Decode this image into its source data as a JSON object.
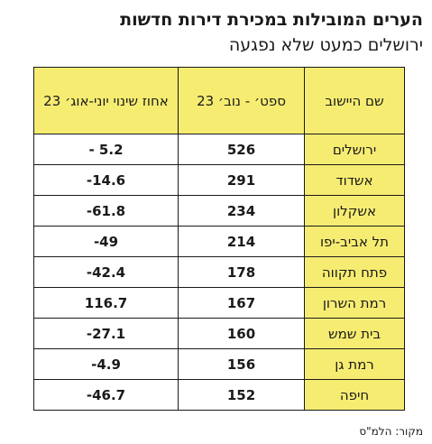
{
  "chart_data": {
    "type": "table",
    "title": "הערים המובילות במכירת דירות חדשות",
    "subtitle": "ירושלים כמעט שלא נפגעה",
    "columns": [
      "שם היישוב",
      "ספט׳ - נוב׳ 23",
      "אחוז שינוי יוני-אוג׳ 23"
    ],
    "rows": [
      {
        "city": "ירושלים",
        "sales": 526,
        "change": "- 5.2"
      },
      {
        "city": "אשדוד",
        "sales": 291,
        "change": "-14.6"
      },
      {
        "city": "אשקלון",
        "sales": 234,
        "change": "-61.8"
      },
      {
        "city": "תל אביב-יפו",
        "sales": 214,
        "change": "-49"
      },
      {
        "city": "פתח תקווה",
        "sales": 178,
        "change": "-42.4"
      },
      {
        "city": "רמת השרון",
        "sales": 167,
        "change": "116.7"
      },
      {
        "city": "בית שמש",
        "sales": 160,
        "change": "-27.1"
      },
      {
        "city": "רמת גן",
        "sales": 156,
        "change": "-4.9"
      },
      {
        "city": "חיפה",
        "sales": 152,
        "change": "-46.7"
      }
    ],
    "source": "מקור: הלמ\"ס",
    "colors": {
      "highlight": "#f6ec72",
      "border": "#1a1a1a",
      "text": "#1a1a1a"
    }
  }
}
